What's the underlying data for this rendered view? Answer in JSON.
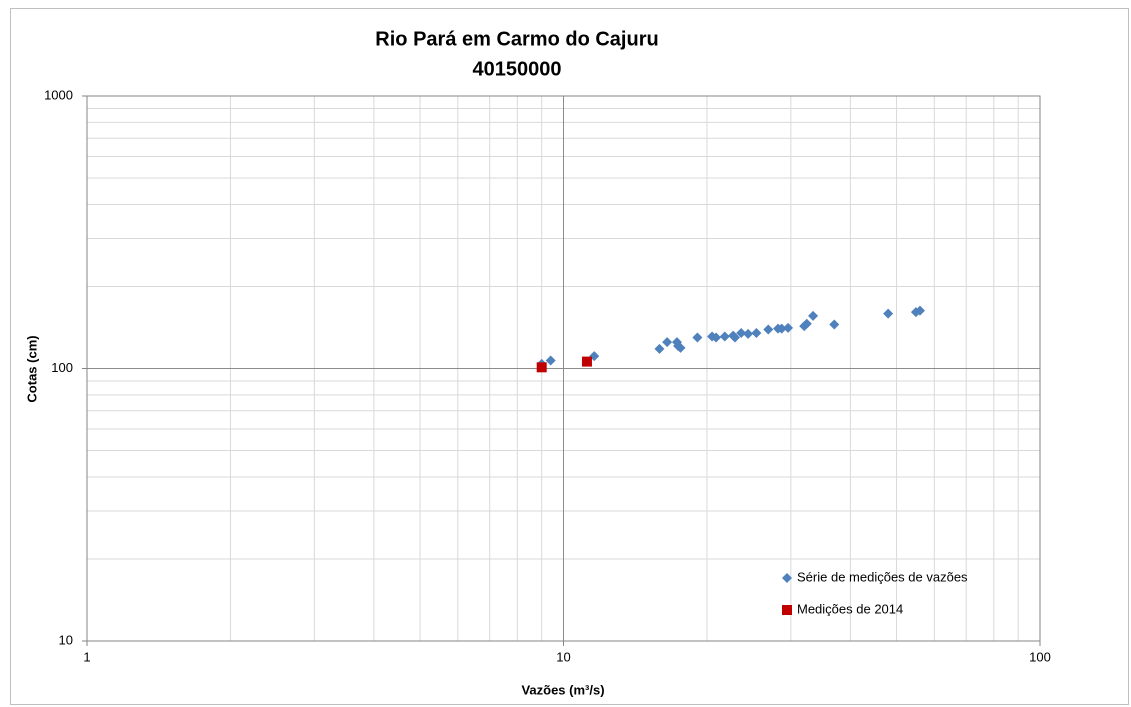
{
  "chart_data": {
    "type": "scatter",
    "title": "Rio Pará em Carmo do Cajuru",
    "subtitle": "40150000",
    "x_label": "Vazões (m³/s)",
    "y_label": "Cotas (cm)",
    "log_x": true,
    "log_y": true,
    "grid": true,
    "legend": "lower right",
    "xlim": [
      1,
      100
    ],
    "xticks": [
      1,
      10,
      100
    ],
    "xminor": [
      2,
      3,
      4,
      5,
      6,
      7,
      8,
      9,
      20,
      30,
      40,
      50,
      60,
      70,
      80,
      90
    ],
    "ylim": [
      10,
      1000
    ],
    "yticks": [
      10,
      100,
      1000
    ],
    "yminor": [
      20,
      30,
      40,
      50,
      60,
      70,
      80,
      90,
      200,
      300,
      400,
      500,
      600,
      700,
      800,
      900
    ],
    "series": [
      {
        "name": "Série de medições de vazões",
        "color": "#4f81bd",
        "marker": "diamond",
        "x": [
          9.0,
          9.4,
          11.6,
          15.9,
          16.5,
          17.3,
          17.4,
          17.6,
          19.1,
          20.5,
          20.9,
          21.8,
          22.7,
          22.9,
          23.6,
          24.4,
          25.4,
          26.9,
          28.2,
          28.7,
          29.6,
          32.0,
          32.4,
          33.4,
          37.0,
          48.0,
          54.9,
          56.0
        ],
        "values": [
          104,
          107,
          111,
          118,
          125,
          125,
          121,
          119,
          130,
          131,
          130,
          131,
          132,
          130,
          135,
          134,
          135,
          139,
          140,
          140,
          141,
          143,
          146,
          156,
          145,
          159,
          161,
          163
        ]
      },
      {
        "name": "Medições de 2014",
        "color": "#c00000",
        "marker": "square",
        "x": [
          9.0,
          11.2
        ],
        "values": [
          101,
          106
        ]
      }
    ]
  }
}
